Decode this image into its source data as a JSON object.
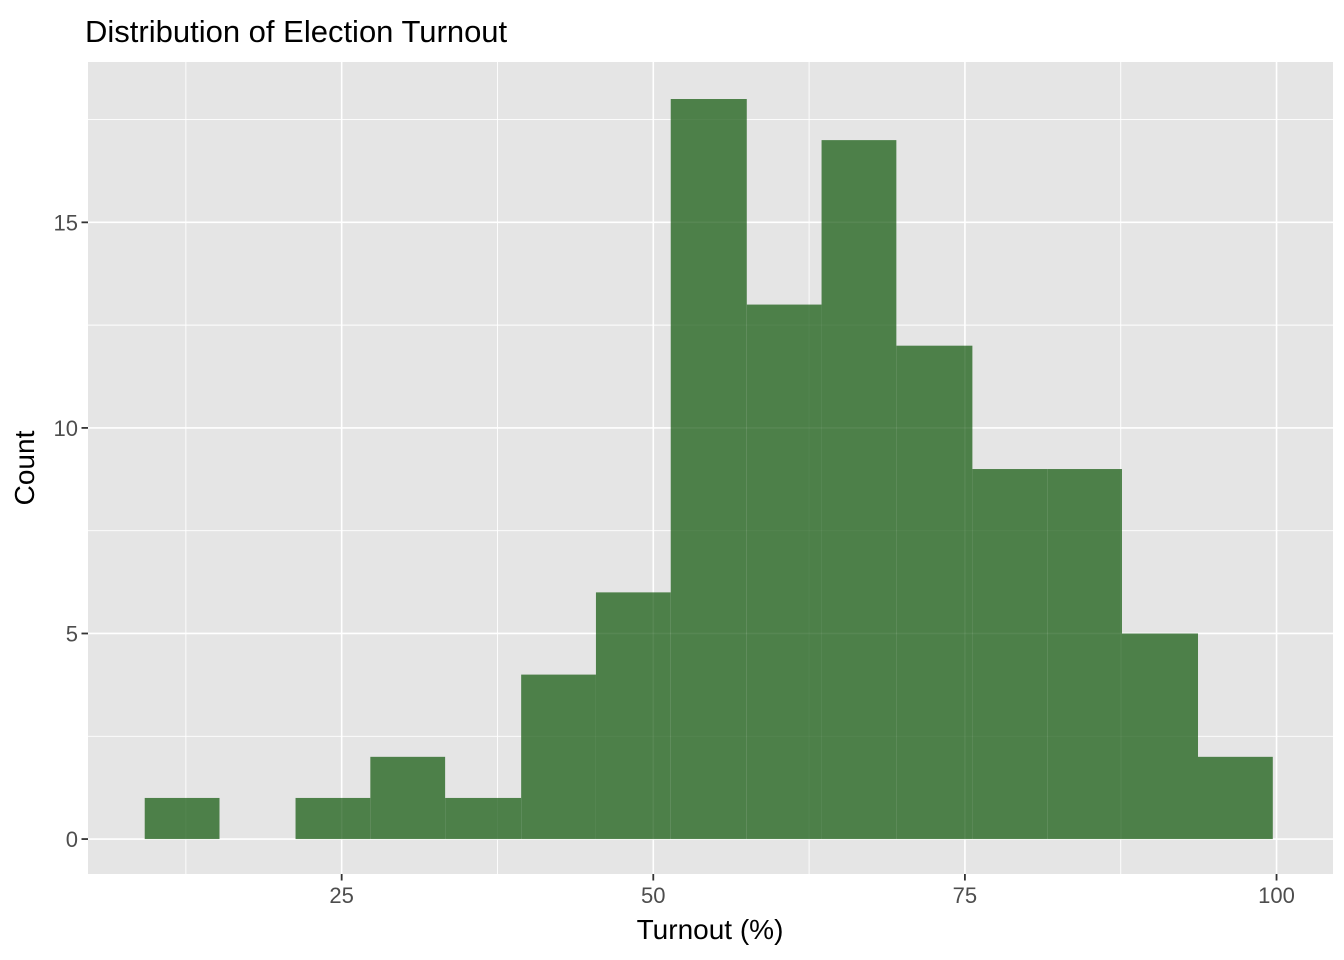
{
  "chart_data": {
    "type": "bar",
    "subtype": "histogram",
    "title": "Distribution of Election Turnout",
    "xlabel": "Turnout (%)",
    "ylabel": "Count",
    "bin_edges": [
      9.2,
      15.2,
      21.3,
      27.3,
      33.3,
      39.4,
      45.4,
      51.4,
      57.5,
      63.5,
      69.5,
      75.6,
      81.6,
      87.6,
      93.7,
      99.7
    ],
    "counts": [
      1,
      0,
      1,
      2,
      1,
      4,
      6,
      18,
      13,
      17,
      12,
      9,
      9,
      5,
      2
    ],
    "total_observations": 100,
    "x_ticks": [
      25,
      50,
      75,
      100
    ],
    "x_minor_ticks": [
      12.5,
      37.5,
      62.5,
      87.5
    ],
    "y_ticks": [
      0,
      5,
      10,
      15
    ],
    "y_minor_ticks": [
      2.5,
      7.5,
      12.5,
      17.5
    ],
    "xlim": [
      4.65,
      104.53
    ],
    "ylim": [
      -0.85,
      18.9
    ],
    "grid": true,
    "legend": false,
    "colors": {
      "bar_fill": "#4d8049",
      "panel_background": "#e5e5e5",
      "gridline": "#ffffff",
      "title_text": "#000000",
      "axis_title_text": "#000000",
      "tick_label_text": "#4d4d4d",
      "tick_mark": "#333333",
      "page_background": "#ffffff"
    }
  }
}
